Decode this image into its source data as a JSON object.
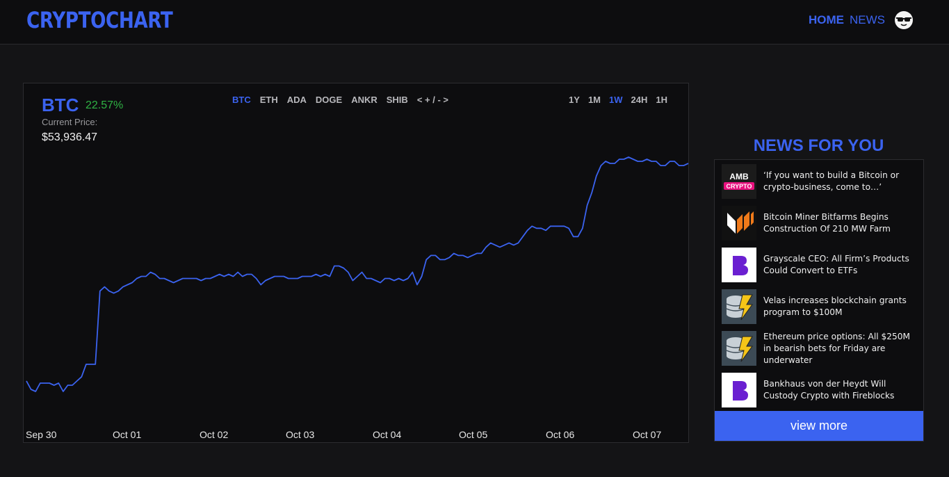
{
  "header": {
    "logo": "CRYPTOCHART",
    "nav_home": "HOME",
    "nav_news": "NEWS"
  },
  "coin": {
    "name": "BTC",
    "change": "22.57%",
    "price_label": "Current Price:",
    "price": "$53,936.47"
  },
  "coin_tabs": [
    "BTC",
    "ETH",
    "ADA",
    "DOGE",
    "ANKR",
    "SHIB",
    "< + / - >"
  ],
  "active_coin": "BTC",
  "time_tabs": [
    "1Y",
    "1M",
    "1W",
    "24H",
    "1H"
  ],
  "active_time": "1W",
  "colors": {
    "accent": "#3b63f0",
    "positive": "#2fb344",
    "background": "#141416",
    "panel": "#0d0d0f"
  },
  "news": {
    "title": "NEWS FOR YOU",
    "items": [
      {
        "headline": "‘If you want to build a Bitcoin or crypto-business, come to…’",
        "source_icon": "amb-crypto-logo"
      },
      {
        "headline": "Bitcoin Miner Bitfarms Begins Construction Of 210 MW Farm",
        "source_icon": "bitfarms-logo"
      },
      {
        "headline": "Grayscale CEO: All Firm’s Products Could Convert to ETFs",
        "source_icon": "b-logo"
      },
      {
        "headline": "Velas increases blockchain grants program to $100M",
        "source_icon": "coins-lightning-logo"
      },
      {
        "headline": "Ethereum price options: All $250M in bearish bets for Friday are underwater",
        "source_icon": "coins-lightning-logo"
      },
      {
        "headline": "Bankhaus von der Heydt Will Custody Crypto with Fireblocks",
        "source_icon": "b-logo"
      }
    ],
    "view_more": "view more"
  },
  "chart_data": {
    "type": "line",
    "x_tick_labels": [
      "Sep 30",
      "Oct 01",
      "Oct 02",
      "Oct 03",
      "Oct 04",
      "Oct 05",
      "Oct 06",
      "Oct 07"
    ],
    "series": [
      {
        "color": "#3b63f0",
        "values": [
          43400,
          43000,
          42900,
          43300,
          43300,
          43300,
          43200,
          43300,
          42900,
          43200,
          43200,
          43400,
          43600,
          44200,
          44200,
          44200,
          47700,
          47900,
          47700,
          47600,
          47700,
          47900,
          48000,
          48100,
          48300,
          48400,
          48400,
          48600,
          48500,
          48300,
          48300,
          48200,
          48100,
          48200,
          48300,
          48300,
          48300,
          48300,
          48200,
          48300,
          48300,
          48400,
          48500,
          48400,
          48500,
          48400,
          48600,
          48400,
          48500,
          48500,
          48300,
          48000,
          48200,
          48300,
          48400,
          48400,
          48400,
          48300,
          48300,
          48300,
          48400,
          48400,
          48400,
          48500,
          48400,
          48500,
          48400,
          48900,
          48900,
          48800,
          48600,
          48200,
          48400,
          48600,
          48300,
          48300,
          48200,
          48100,
          48300,
          48300,
          48200,
          48300,
          48200,
          48300,
          48600,
          48000,
          48400,
          49200,
          49400,
          49400,
          49200,
          49200,
          49300,
          49500,
          49400,
          49400,
          49300,
          49400,
          49500,
          49500,
          49800,
          50000,
          49900,
          49800,
          49900,
          50000,
          49900,
          50000,
          50300,
          50600,
          50800,
          50700,
          50700,
          50600,
          50800,
          50800,
          50800,
          50800,
          50700,
          50300,
          50300,
          50700,
          51800,
          52400,
          53200,
          53700,
          53900,
          53800,
          53800,
          54000,
          54000,
          54100,
          54000,
          53900,
          53900,
          54000,
          53900,
          53900,
          53700,
          53700,
          53900,
          53900,
          53700,
          53700,
          53800
        ]
      }
    ]
  }
}
